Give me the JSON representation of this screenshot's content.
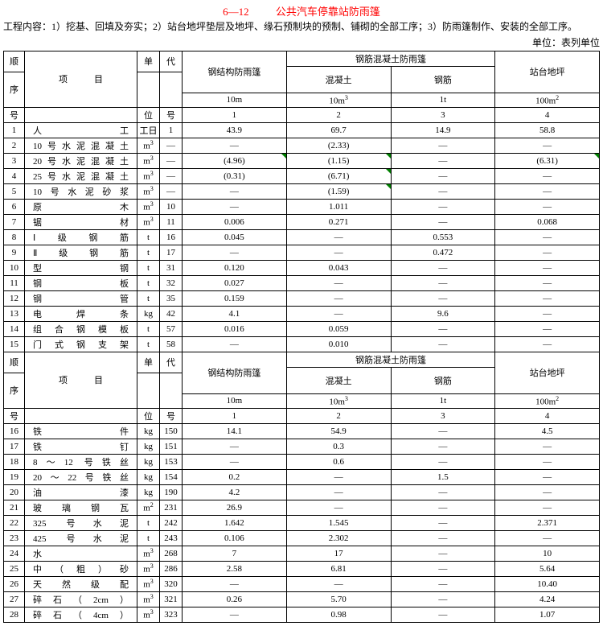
{
  "title_code": "6—12",
  "title_text": "公共汽车停靠站防雨篷",
  "desc": "工程内容：1）挖基、回填及夯实；2）站台地坪垫层及地坪、缘石预制块的预制、铺砌的全部工序；3）防雨篷制作、安装的全部工序。",
  "unit_label": "单位：表列单位",
  "head": {
    "seq_top": "顺",
    "seq_mid": "序",
    "seq_bot": "号",
    "item_top": "项",
    "item_bot": "目",
    "unit_top": "单",
    "unit_bot": "位",
    "code_top": "代",
    "code_bot": "号",
    "g1": "钢结构防雨篷",
    "g2": "钢筋混凝土防雨篷",
    "g2a": "混凝土",
    "g2b": "钢筋",
    "g3": "站台地坪",
    "u1": "10m",
    "u2": "10m³",
    "u3": "1t",
    "u4": "100m²",
    "n1": "1",
    "n2": "2",
    "n3": "3",
    "n4": "4"
  },
  "rows1": [
    {
      "n": "1",
      "item": "人　　　工",
      "u": "工日",
      "c": "1",
      "v": [
        "43.9",
        "69.7",
        "14.9",
        "58.8"
      ]
    },
    {
      "n": "2",
      "item": "10号水泥混凝土",
      "u": "m³",
      "c": "—",
      "v": [
        "—",
        "(2.33)",
        "—",
        "—"
      ]
    },
    {
      "n": "3",
      "item": "20号水泥混凝土",
      "u": "m³",
      "c": "—",
      "v": [
        "(4.96)",
        "(1.15)",
        "—",
        "(6.31)"
      ],
      "tri": [
        0,
        1,
        3
      ]
    },
    {
      "n": "4",
      "item": "25号水泥混凝土",
      "u": "m³",
      "c": "—",
      "v": [
        "(0.31)",
        "(6.71)",
        "—",
        "—"
      ],
      "tri": [
        1
      ]
    },
    {
      "n": "5",
      "item": "10号水泥砂浆",
      "u": "m³",
      "c": "—",
      "v": [
        "—",
        "(1.59)",
        "—",
        "—"
      ],
      "tri": [
        1
      ]
    },
    {
      "n": "6",
      "item": "原　　　木",
      "u": "m³",
      "c": "10",
      "v": [
        "—",
        "1.011",
        "—",
        "—"
      ]
    },
    {
      "n": "7",
      "item": "锯　　　材",
      "u": "m³",
      "c": "11",
      "v": [
        "0.006",
        "0.271",
        "—",
        "0.068"
      ]
    },
    {
      "n": "8",
      "item": "Ⅰ 级 钢 筋",
      "u": "t",
      "c": "16",
      "v": [
        "0.045",
        "—",
        "0.553",
        "—"
      ]
    },
    {
      "n": "9",
      "item": "Ⅱ 级 钢 筋",
      "u": "t",
      "c": "17",
      "v": [
        "—",
        "—",
        "0.472",
        "—"
      ]
    },
    {
      "n": "10",
      "item": "型　　　钢",
      "u": "t",
      "c": "31",
      "v": [
        "0.120",
        "0.043",
        "—",
        "—"
      ]
    },
    {
      "n": "11",
      "item": "钢　　　板",
      "u": "t",
      "c": "32",
      "v": [
        "0.027",
        "—",
        "—",
        "—"
      ]
    },
    {
      "n": "12",
      "item": "钢　　　管",
      "u": "t",
      "c": "35",
      "v": [
        "0.159",
        "—",
        "—",
        "—"
      ]
    },
    {
      "n": "13",
      "item": "电　焊　条",
      "u": "kg",
      "c": "42",
      "v": [
        "4.1",
        "—",
        "9.6",
        "—"
      ]
    },
    {
      "n": "14",
      "item": "组 合 钢 模 板",
      "u": "t",
      "c": "57",
      "v": [
        "0.016",
        "0.059",
        "—",
        "—"
      ]
    },
    {
      "n": "15",
      "item": "门式钢支架",
      "u": "t",
      "c": "58",
      "v": [
        "—",
        "0.010",
        "—",
        "—"
      ]
    }
  ],
  "rows2": [
    {
      "n": "16",
      "item": "铁　　　件",
      "u": "kg",
      "c": "150",
      "v": [
        "14.1",
        "54.9",
        "—",
        "4.5"
      ]
    },
    {
      "n": "17",
      "item": "铁　　　钉",
      "u": "kg",
      "c": "151",
      "v": [
        "—",
        "0.3",
        "—",
        "—"
      ]
    },
    {
      "n": "18",
      "item": "8～12 号铁丝",
      "u": "kg",
      "c": "153",
      "v": [
        "—",
        "0.6",
        "—",
        "—"
      ]
    },
    {
      "n": "19",
      "item": "20～22号铁丝",
      "u": "kg",
      "c": "154",
      "v": [
        "0.2",
        "—",
        "1.5",
        "—"
      ]
    },
    {
      "n": "20",
      "item": "油　　　漆",
      "u": "kg",
      "c": "190",
      "v": [
        "4.2",
        "—",
        "—",
        "—"
      ]
    },
    {
      "n": "21",
      "item": "玻 璃 钢 瓦",
      "u": "m²",
      "c": "231",
      "v": [
        "26.9",
        "—",
        "—",
        "—"
      ]
    },
    {
      "n": "22",
      "item": "325 号水泥",
      "u": "t",
      "c": "242",
      "v": [
        "1.642",
        "1.545",
        "—",
        "2.371"
      ]
    },
    {
      "n": "23",
      "item": "425 号水泥",
      "u": "t",
      "c": "243",
      "v": [
        "0.106",
        "2.302",
        "—",
        "—"
      ]
    },
    {
      "n": "24",
      "item": "水",
      "u": "m³",
      "c": "268",
      "v": [
        "7",
        "17",
        "—",
        "10"
      ]
    },
    {
      "n": "25",
      "item": "中（粗）砂",
      "u": "m³",
      "c": "286",
      "v": [
        "2.58",
        "6.81",
        "—",
        "5.64"
      ]
    },
    {
      "n": "26",
      "item": "天 然 级 配",
      "u": "m³",
      "c": "320",
      "v": [
        "—",
        "—",
        "—",
        "10.40"
      ]
    },
    {
      "n": "27",
      "item": "碎石（2cm）",
      "u": "m³",
      "c": "321",
      "v": [
        "0.26",
        "5.70",
        "—",
        "4.24"
      ]
    },
    {
      "n": "28",
      "item": "碎石（4cm）",
      "u": "m³",
      "c": "323",
      "v": [
        "—",
        "0.98",
        "—",
        "1.07"
      ]
    }
  ]
}
